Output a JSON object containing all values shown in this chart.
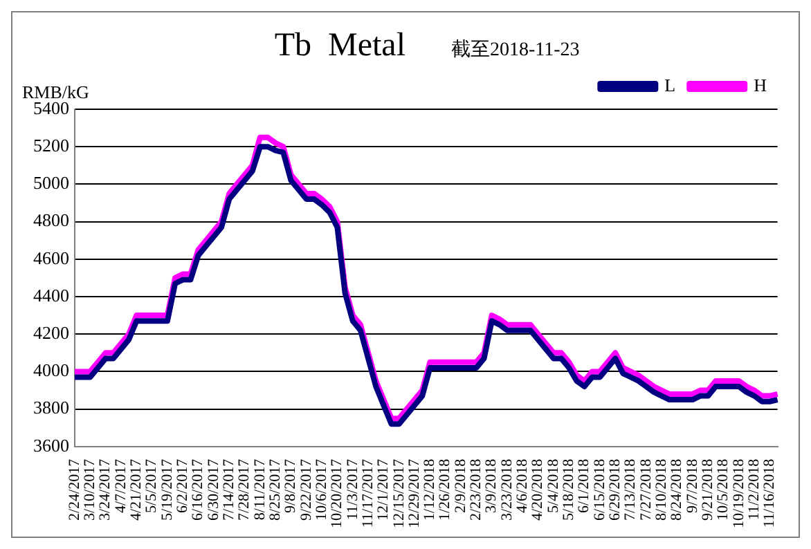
{
  "chart_data": {
    "type": "line",
    "title": "Tb  Metal",
    "subtitle": "截至2018-11-23",
    "ylabel": "RMB/kG",
    "categories": [
      "2/24/2017",
      null,
      "3/10/2017",
      null,
      "3/24/2017",
      null,
      "4/7/2017",
      null,
      "4/21/2017",
      null,
      "5/5/2017",
      null,
      "5/19/2017",
      null,
      "6/2/2017",
      null,
      "6/16/2017",
      null,
      "6/30/2017",
      null,
      "7/14/2017",
      null,
      "7/28/2017",
      null,
      "8/11/2017",
      null,
      "8/25/2017",
      null,
      "9/8/2017",
      null,
      "9/22/2017",
      null,
      "10/6/2017",
      null,
      "10/20/2017",
      null,
      "11/3/2017",
      null,
      "11/17/2017",
      null,
      "12/1/2017",
      null,
      "12/15/2017",
      null,
      "12/29/2017",
      null,
      "1/12/2018",
      null,
      "1/26/2018",
      null,
      "2/9/2018",
      null,
      "2/23/2018",
      null,
      "3/9/2018",
      null,
      "3/23/2018",
      null,
      "4/6/2018",
      null,
      "4/20/2018",
      null,
      "5/4/2018",
      null,
      "5/18/2018",
      null,
      "6/1/2018",
      null,
      "6/15/2018",
      null,
      "6/29/2018",
      null,
      "7/13/2018",
      null,
      "7/27/2018",
      null,
      "8/10/2018",
      null,
      "8/24/2018",
      null,
      "9/7/2018",
      null,
      "9/21/2018",
      null,
      "10/5/2018",
      null,
      "10/19/2018",
      null,
      "11/2/2018",
      null,
      "11/16/2018",
      null
    ],
    "series": [
      {
        "name": "L",
        "color": "#000080",
        "values": [
          3970,
          3970,
          3970,
          4020,
          4070,
          4070,
          4120,
          4170,
          4270,
          4270,
          4270,
          4270,
          4270,
          4470,
          4490,
          4490,
          4620,
          4670,
          4720,
          4770,
          4920,
          4970,
          5020,
          5070,
          5200,
          5200,
          5180,
          5170,
          5020,
          4970,
          4920,
          4920,
          4890,
          4850,
          4770,
          4420,
          4270,
          4220,
          4070,
          3920,
          3820,
          3720,
          3720,
          3770,
          3820,
          3870,
          4020,
          4020,
          4020,
          4020,
          4020,
          4020,
          4020,
          4070,
          4270,
          4250,
          4220,
          4220,
          4220,
          4220,
          4170,
          4120,
          4070,
          4070,
          4020,
          3950,
          3920,
          3970,
          3970,
          4020,
          4070,
          3990,
          3970,
          3950,
          3920,
          3890,
          3870,
          3850,
          3850,
          3850,
          3850,
          3870,
          3870,
          3920,
          3920,
          3920,
          3920,
          3890,
          3870,
          3840,
          3840,
          3850
        ]
      },
      {
        "name": "H",
        "color": "#ff00ff",
        "values": [
          4000,
          4000,
          4000,
          4050,
          4100,
          4100,
          4150,
          4200,
          4300,
          4300,
          4300,
          4300,
          4300,
          4500,
          4520,
          4520,
          4650,
          4700,
          4750,
          4800,
          4950,
          5000,
          5050,
          5100,
          5250,
          5250,
          5220,
          5200,
          5050,
          5000,
          4950,
          4950,
          4920,
          4880,
          4800,
          4450,
          4300,
          4250,
          4100,
          3950,
          3850,
          3750,
          3750,
          3800,
          3850,
          3900,
          4050,
          4050,
          4050,
          4050,
          4050,
          4050,
          4050,
          4100,
          4300,
          4280,
          4250,
          4250,
          4250,
          4250,
          4200,
          4150,
          4100,
          4100,
          4050,
          3980,
          3950,
          4000,
          4000,
          4050,
          4100,
          4020,
          4000,
          3980,
          3950,
          3920,
          3900,
          3880,
          3880,
          3880,
          3880,
          3900,
          3900,
          3950,
          3950,
          3950,
          3950,
          3920,
          3900,
          3870,
          3870,
          3880
        ]
      }
    ],
    "ylim": [
      3600,
      5400
    ],
    "yticks": [
      3600,
      3800,
      4000,
      4200,
      4400,
      4600,
      4800,
      5000,
      5200,
      5400
    ],
    "grid": "y",
    "legend": "top right",
    "marker": "none",
    "line_style": "solid"
  }
}
